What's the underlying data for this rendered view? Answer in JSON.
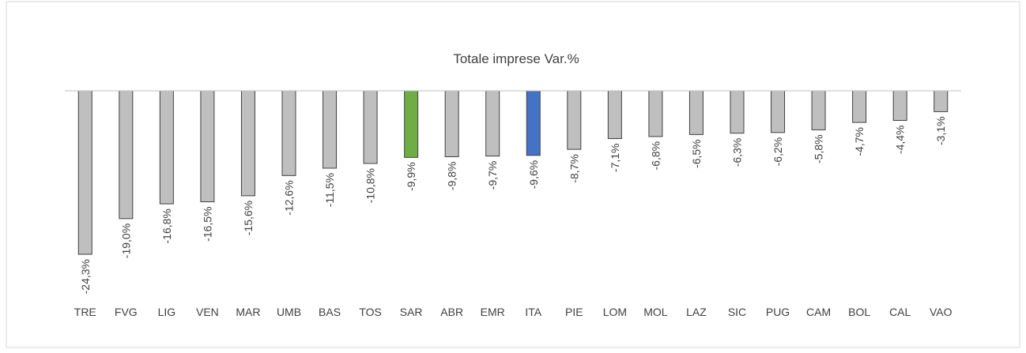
{
  "chart_data": {
    "type": "bar",
    "title": "Totale imprese Var.%",
    "categories": [
      "TRE",
      "FVG",
      "LIG",
      "VEN",
      "MAR",
      "UMB",
      "BAS",
      "TOS",
      "SAR",
      "ABR",
      "EMR",
      "ITA",
      "PIE",
      "LOM",
      "MOL",
      "LAZ",
      "SIC",
      "PUG",
      "CAM",
      "BOL",
      "CAL",
      "VAO"
    ],
    "values": [
      -24.3,
      -19.0,
      -16.8,
      -16.5,
      -15.6,
      -12.6,
      -11.5,
      -10.8,
      -9.9,
      -9.8,
      -9.7,
      -9.6,
      -8.7,
      -7.1,
      -6.8,
      -6.5,
      -6.3,
      -6.2,
      -5.8,
      -4.7,
      -4.4,
      -3.1
    ],
    "value_labels": [
      "-24,3%",
      "-19,0%",
      "-16,8%",
      "-16,5%",
      "-15,6%",
      "-12,6%",
      "-11,5%",
      "-10,8%",
      "-9,9%",
      "-9,8%",
      "-9,7%",
      "-9,6%",
      "-8,7%",
      "-7,1%",
      "-6,8%",
      "-6,5%",
      "-6,3%",
      "-6,2%",
      "-5,8%",
      "-4,7%",
      "-4,4%",
      "-3,1%"
    ],
    "colors": [
      "#bfbfbf",
      "#bfbfbf",
      "#bfbfbf",
      "#bfbfbf",
      "#bfbfbf",
      "#bfbfbf",
      "#bfbfbf",
      "#bfbfbf",
      "#70ad47",
      "#bfbfbf",
      "#bfbfbf",
      "#4472c4",
      "#bfbfbf",
      "#bfbfbf",
      "#bfbfbf",
      "#bfbfbf",
      "#bfbfbf",
      "#bfbfbf",
      "#bfbfbf",
      "#bfbfbf",
      "#bfbfbf",
      "#bfbfbf"
    ]
  }
}
